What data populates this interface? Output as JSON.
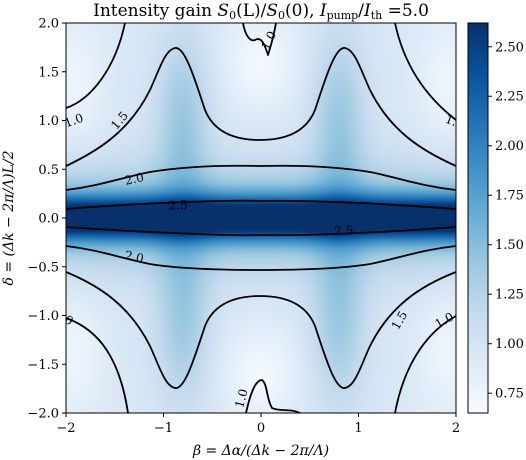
{
  "chart_data": {
    "type": "heatmap",
    "title": "Intensity gain S₀(L)/S₀(0), I_pump/I_th =5.0",
    "title_parts": {
      "prefix": "Intensity gain ",
      "s": "S",
      "sub0": "0",
      "paren_L": "(L)/",
      "s2": "S",
      "sub0b": "0",
      "paren_0": "(0), ",
      "i1": "I",
      "sub_pump": "pump",
      "slash": "/",
      "i2": "I",
      "sub_th": "th",
      "suffix": " =5.0"
    },
    "xlabel": "β = Δα/(Δk − 2π/Λ)",
    "ylabel": "δ = (Δk − 2π/Λ)L/2",
    "xlim": [
      -2,
      2
    ],
    "ylim": [
      -2,
      2
    ],
    "xticks": [
      -2,
      -1,
      0,
      1,
      2
    ],
    "yticks": [
      -2.0,
      -1.5,
      -1.0,
      -0.5,
      0.0,
      0.5,
      1.0,
      1.5,
      2.0
    ],
    "xtick_labels": [
      "−2",
      "−1",
      "0",
      "1",
      "2"
    ],
    "ytick_labels": [
      "−2.0",
      "−1.5",
      "−1.0",
      "−0.5",
      "0.0",
      "0.5",
      "1.0",
      "1.5",
      "2.0"
    ],
    "colormap": "Blues",
    "colorbar": {
      "range": [
        0.65,
        2.62
      ],
      "ticks": [
        0.75,
        1.0,
        1.25,
        1.5,
        1.75,
        2.0,
        2.25,
        2.5
      ],
      "tick_labels": [
        "0.75",
        "1.00",
        "1.25",
        "1.50",
        "1.75",
        "2.00",
        "2.25",
        "2.50"
      ]
    },
    "contour_levels": [
      1.0,
      1.5,
      2.0,
      2.5
    ],
    "contour_labels": [
      {
        "text": "1.0",
        "x": -1.92,
        "y": 1.0,
        "angle": -20
      },
      {
        "text": "1.5",
        "x": -1.45,
        "y": 1.0,
        "angle": -50
      },
      {
        "text": "2.0",
        "x": -1.3,
        "y": 0.4,
        "angle": -12
      },
      {
        "text": "2.5",
        "x": -0.85,
        "y": 0.13,
        "angle": -3
      },
      {
        "text": "1.0",
        "x": 0.08,
        "y": 1.82,
        "angle": -65
      },
      {
        "text": "1.",
        "x": 1.95,
        "y": 1.0,
        "angle": 20
      },
      {
        "text": "2.0",
        "x": -1.3,
        "y": -0.4,
        "angle": 12
      },
      {
        "text": "2.5",
        "x": 0.85,
        "y": -0.13,
        "angle": -3
      },
      {
        "text": "0",
        "x": -1.97,
        "y": -1.05,
        "angle": 30
      },
      {
        "text": "1.5",
        "x": 1.42,
        "y": -1.05,
        "angle": -60
      },
      {
        "text": "1.0",
        "x": 1.88,
        "y": -1.05,
        "angle": -30
      },
      {
        "text": "1.0",
        "x": -0.2,
        "y": -1.85,
        "angle": -75
      }
    ]
  }
}
